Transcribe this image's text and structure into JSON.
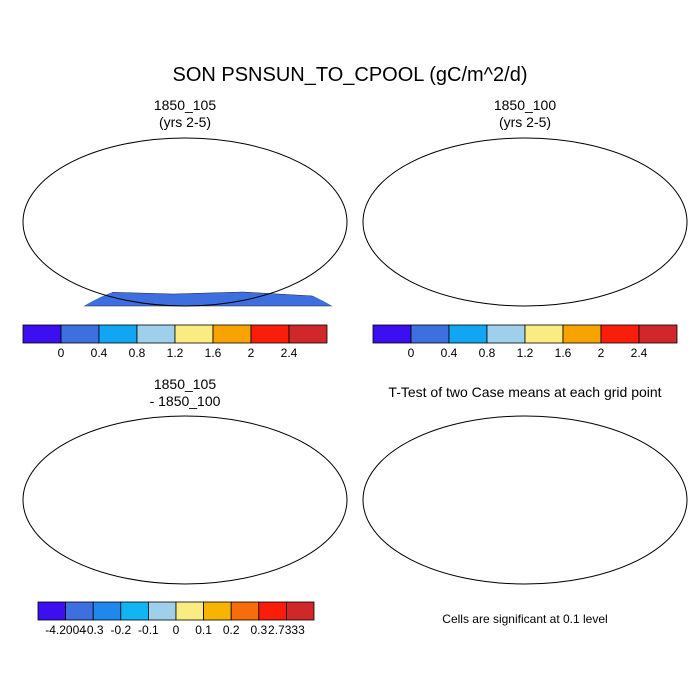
{
  "title": "SON PSNSUN_TO_CPOOL (gC/m^2/d)",
  "panels": [
    {
      "title_line1": "1850_105",
      "title_line2": "(yrs 2-5)"
    },
    {
      "title_line1": "1850_100",
      "title_line2": "(yrs 2-5)"
    },
    {
      "title_line1": "1850_105",
      "title_line2": "- 1850_100"
    },
    {
      "title_line1": "T-Test of two Case means at each grid point",
      "title_line2": ""
    }
  ],
  "colorbar_main": {
    "colors": [
      "#3b0ff0",
      "#3d6fe0",
      "#11a6f2",
      "#9fd0eb",
      "#fbec82",
      "#f8a400",
      "#fa1e0a",
      "#d0272a"
    ],
    "labels": [
      "0",
      "0.4",
      "0.8",
      "1.2",
      "1.6",
      "2",
      "2.4"
    ]
  },
  "colorbar_diff": {
    "colors": [
      "#3b0ff0",
      "#3d6fe0",
      "#1e88ee",
      "#11b5f2",
      "#9fd0eb",
      "#fbec82",
      "#f8b400",
      "#f66d0a",
      "#fa1e0a",
      "#d0272a"
    ],
    "labels": [
      "-4.2004",
      "-0.3",
      "-0.2",
      "-0.1",
      "0",
      "0.1",
      "0.2",
      "0.3",
      "2.7333"
    ]
  },
  "significance_note": "Cells are significant at 0.1 level",
  "colors": {
    "low": "#3d6fe0",
    "mid": "#fbec82",
    "high": "#d0272a",
    "significant": "#ff0000"
  }
}
